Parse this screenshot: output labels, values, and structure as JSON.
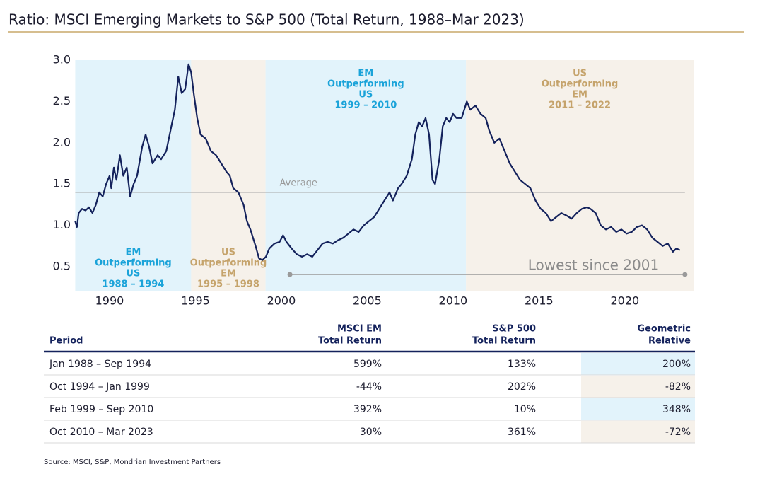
{
  "title": "Ratio: MSCI Emerging Markets to S&P 500 (Total Return, 1988–Mar 2023)",
  "chart_data": {
    "type": "line",
    "xlim": [
      1988,
      2024
    ],
    "ylim": [
      0.2,
      3.0
    ],
    "xticks": [
      1990,
      1995,
      2000,
      2005,
      2010,
      2015,
      2020
    ],
    "yticks": [
      0.5,
      {
        "value": 1,
        "label": "1.0"
      },
      1.5,
      {
        "value": 2,
        "label": "2.0"
      },
      2.5,
      {
        "value": 3,
        "label": "3.0"
      }
    ],
    "x": [
      1988.0,
      1988.1,
      1988.2,
      1988.4,
      1988.6,
      1988.8,
      1989.0,
      1989.2,
      1989.4,
      1989.6,
      1989.8,
      1990.0,
      1990.1,
      1990.25,
      1990.4,
      1990.6,
      1990.8,
      1991.0,
      1991.2,
      1991.4,
      1991.6,
      1991.9,
      1992.1,
      1992.3,
      1992.5,
      1992.8,
      1993.0,
      1993.3,
      1993.6,
      1993.8,
      1994.0,
      1994.1,
      1994.2,
      1994.4,
      1994.6,
      1994.75,
      1994.9,
      1995.1,
      1995.3,
      1995.6,
      1995.9,
      1996.2,
      1996.5,
      1996.8,
      1997.0,
      1997.2,
      1997.5,
      1997.8,
      1998.0,
      1998.2,
      1998.5,
      1998.7,
      1998.9,
      1999.1,
      1999.3,
      1999.6,
      1999.9,
      2000.1,
      2000.3,
      2000.6,
      2000.9,
      2001.2,
      2001.5,
      2001.8,
      2002.1,
      2002.4,
      2002.7,
      2003.0,
      2003.3,
      2003.6,
      2003.9,
      2004.2,
      2004.5,
      2004.8,
      2005.1,
      2005.4,
      2005.7,
      2006.0,
      2006.3,
      2006.5,
      2006.8,
      2007.0,
      2007.3,
      2007.6,
      2007.8,
      2008.0,
      2008.2,
      2008.4,
      2008.6,
      2008.8,
      2008.95,
      2009.2,
      2009.4,
      2009.6,
      2009.8,
      2010.0,
      2010.2,
      2010.5,
      2010.8,
      2011.0,
      2011.3,
      2011.6,
      2011.9,
      2012.1,
      2012.4,
      2012.7,
      2013.0,
      2013.3,
      2013.6,
      2013.9,
      2014.2,
      2014.5,
      2014.8,
      2015.1,
      2015.4,
      2015.7,
      2016.0,
      2016.3,
      2016.6,
      2016.9,
      2017.2,
      2017.5,
      2017.8,
      2018.0,
      2018.3,
      2018.6,
      2018.9,
      2019.2,
      2019.5,
      2019.8,
      2020.1,
      2020.4,
      2020.7,
      2021.0,
      2021.3,
      2021.6,
      2021.9,
      2022.2,
      2022.5,
      2022.8,
      2023.0,
      2023.2
    ],
    "series": [
      {
        "color": "#14225c",
        "values": [
          1.05,
          0.98,
          1.15,
          1.2,
          1.18,
          1.22,
          1.15,
          1.25,
          1.4,
          1.35,
          1.5,
          1.6,
          1.45,
          1.7,
          1.55,
          1.85,
          1.6,
          1.7,
          1.35,
          1.5,
          1.6,
          1.95,
          2.1,
          1.95,
          1.75,
          1.85,
          1.8,
          1.9,
          2.2,
          2.4,
          2.8,
          2.7,
          2.6,
          2.65,
          2.95,
          2.85,
          2.6,
          2.3,
          2.1,
          2.05,
          1.9,
          1.85,
          1.75,
          1.65,
          1.6,
          1.45,
          1.4,
          1.25,
          1.05,
          0.95,
          0.75,
          0.6,
          0.58,
          0.62,
          0.72,
          0.78,
          0.8,
          0.88,
          0.8,
          0.72,
          0.65,
          0.62,
          0.65,
          0.62,
          0.7,
          0.78,
          0.8,
          0.78,
          0.82,
          0.85,
          0.9,
          0.95,
          0.92,
          1.0,
          1.05,
          1.1,
          1.2,
          1.3,
          1.4,
          1.3,
          1.45,
          1.5,
          1.6,
          1.8,
          2.1,
          2.25,
          2.2,
          2.3,
          2.1,
          1.55,
          1.5,
          1.8,
          2.2,
          2.3,
          2.25,
          2.35,
          2.3,
          2.3,
          2.5,
          2.4,
          2.45,
          2.35,
          2.3,
          2.15,
          2.0,
          2.05,
          1.9,
          1.75,
          1.65,
          1.55,
          1.5,
          1.45,
          1.3,
          1.2,
          1.15,
          1.05,
          1.1,
          1.15,
          1.12,
          1.08,
          1.15,
          1.2,
          1.22,
          1.2,
          1.15,
          1.0,
          0.95,
          0.98,
          0.92,
          0.95,
          0.9,
          0.92,
          0.98,
          1.0,
          0.95,
          0.85,
          0.8,
          0.75,
          0.78,
          0.68,
          0.72,
          0.7
        ]
      }
    ],
    "regions": [
      {
        "start": 1988,
        "end": 1994.75,
        "color": "#e2f3fb",
        "label_color": "#1aa3d9",
        "label_position": "bottom",
        "label": [
          "EM",
          "Outperforming",
          "US",
          "1988 – 1994"
        ]
      },
      {
        "start": 1994.75,
        "end": 1999.08,
        "color": "#f6f1ea",
        "label_color": "#c5a36b",
        "label_position": "bottom",
        "label": [
          "US",
          "Outperforming",
          "EM",
          "1995 – 1998"
        ]
      },
      {
        "start": 1999.08,
        "end": 2010.75,
        "color": "#e2f3fb",
        "label_color": "#1aa3d9",
        "label_position": "top",
        "label": [
          "EM",
          "Outperforming",
          "US",
          "1999 – 2010"
        ]
      },
      {
        "start": 2010.75,
        "end": 2024,
        "color": "#f6f1ea",
        "label_color": "#c5a36b",
        "label_position": "top",
        "label": [
          "US",
          "Outperforming",
          "EM",
          "2011 – 2022"
        ]
      }
    ],
    "average": {
      "label": "Average",
      "value": 1.4
    },
    "lowest": {
      "label": "Lowest since 2001",
      "x": [
        2000.5,
        2023.5
      ]
    }
  },
  "table": {
    "header": [
      [
        "Period"
      ],
      [
        "MSCI EM",
        "Total Return"
      ],
      [
        "S&P 500",
        "Total Return"
      ],
      [
        "Geometric",
        "Relative"
      ]
    ],
    "rows": [
      [
        "Jan 1988 – Sep 1994",
        "599%",
        "133%",
        "200%"
      ],
      [
        "Oct 1994 – Jan 1999",
        "-44%",
        "202%",
        "-82%"
      ],
      [
        "Feb 1999 – Sep 2010",
        "392%",
        "10%",
        "348%"
      ],
      [
        "Oct 2010 – Mar 2023",
        "30%",
        "361%",
        "-72%"
      ]
    ],
    "highlight_colors": [
      "#e2f3fb",
      "#f6f1ea",
      "#e2f3fb",
      "#f6f1ea"
    ]
  },
  "source": "Source: MSCI, S&P, Mondrian Investment Partners"
}
